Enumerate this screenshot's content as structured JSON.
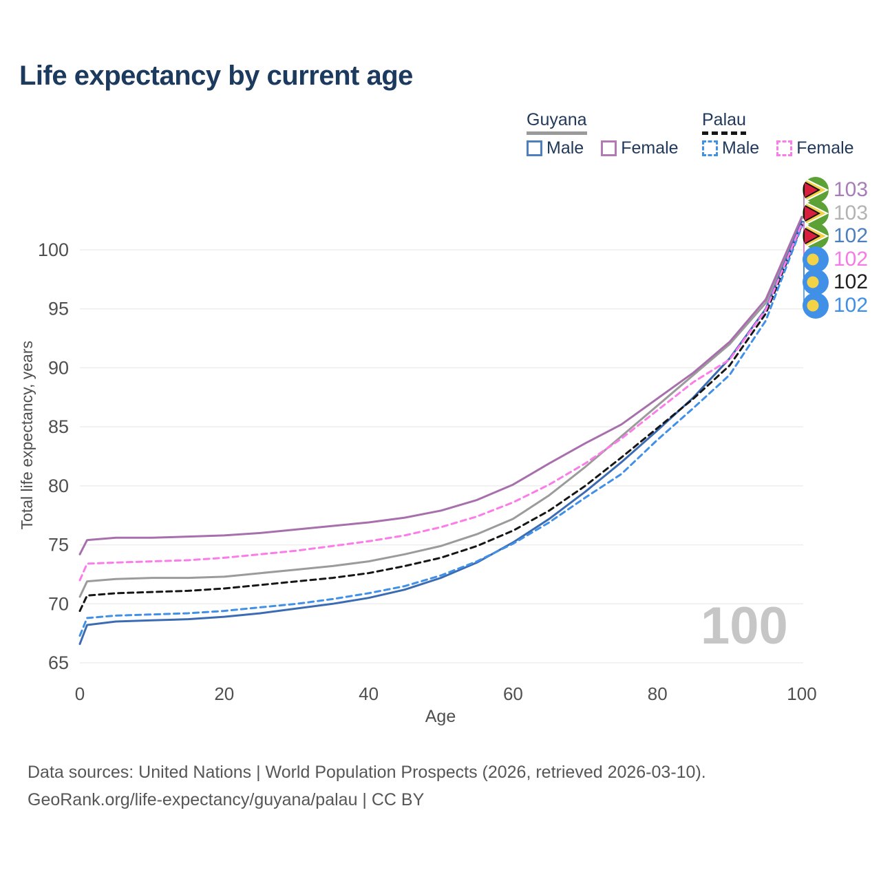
{
  "title": "Life expectancy by current age",
  "legend": {
    "groups": [
      {
        "name": "Guyana",
        "line_style": "solid",
        "underline_color": "#9a9a9a",
        "items": [
          {
            "label": "Male",
            "color": "#4d7fbe"
          },
          {
            "label": "Female",
            "color": "#b279b2"
          }
        ]
      },
      {
        "name": "Palau",
        "line_style": "dashed",
        "underline_color": "#161616",
        "items": [
          {
            "label": "Male",
            "color": "#4190e8"
          },
          {
            "label": "Female",
            "color": "#fb7ce8"
          }
        ]
      }
    ]
  },
  "watermark": "100",
  "footer": {
    "line1": "Data sources: United Nations | World Population Prospects (2026, retrieved 2026-03-10).",
    "line2": "GeoRank.org/life-expectancy/guyana/palau | CC BY"
  },
  "chart_data": {
    "type": "line",
    "title": "Life expectancy by current age",
    "xlabel": "Age",
    "ylabel": "Total life expectancy, years",
    "xlim": [
      0,
      100
    ],
    "ylim": [
      65,
      103.5
    ],
    "xticks": [
      0,
      20,
      40,
      60,
      80,
      100
    ],
    "yticks": [
      65,
      70,
      75,
      80,
      85,
      90,
      95,
      100
    ],
    "grid": "horizontal",
    "legend_position": "top-right",
    "ages": [
      0,
      1,
      5,
      10,
      15,
      20,
      25,
      30,
      35,
      40,
      45,
      50,
      55,
      60,
      65,
      70,
      75,
      80,
      85,
      90,
      95,
      100
    ],
    "series": [
      {
        "name": "Guyana Total",
        "country": "Guyana",
        "sex": "both",
        "style": "solid",
        "color": "#9b9b9b",
        "flag": "guyana",
        "label_slot": 1,
        "end_label": "103",
        "end_label_color": "#b3b3b3",
        "values": [
          70.6,
          71.9,
          72.1,
          72.2,
          72.2,
          72.3,
          72.6,
          72.9,
          73.2,
          73.6,
          74.2,
          74.9,
          75.9,
          77.2,
          79.2,
          81.6,
          84.2,
          86.8,
          89.4,
          92.0,
          95.5,
          102.7
        ]
      },
      {
        "name": "Guyana Male",
        "country": "Guyana",
        "sex": "male",
        "style": "solid",
        "color": "#3b6cb3",
        "flag": "guyana",
        "label_slot": 2,
        "end_label": "102",
        "end_label_color": "#4d7fbe",
        "values": [
          66.6,
          68.2,
          68.5,
          68.6,
          68.7,
          68.9,
          69.2,
          69.6,
          70.0,
          70.5,
          71.2,
          72.2,
          73.5,
          75.2,
          77.2,
          79.5,
          82.0,
          84.7,
          87.5,
          90.8,
          95.0,
          102.4
        ]
      },
      {
        "name": "Guyana Female",
        "country": "Guyana",
        "sex": "female",
        "style": "solid",
        "color": "#a86fad",
        "flag": "guyana",
        "label_slot": 0,
        "end_label": "103",
        "end_label_color": "#a87cb8",
        "values": [
          74.2,
          75.4,
          75.6,
          75.6,
          75.7,
          75.8,
          76.0,
          76.3,
          76.6,
          76.9,
          77.3,
          77.9,
          78.8,
          80.1,
          81.9,
          83.6,
          85.2,
          87.4,
          89.6,
          92.2,
          95.8,
          102.8
        ]
      },
      {
        "name": "Palau Total",
        "country": "Palau",
        "sex": "both",
        "style": "dashed",
        "color": "#161616",
        "flag": "palau",
        "label_slot": 4,
        "end_label": "102",
        "end_label_color": "#1f1f1f",
        "values": [
          69.4,
          70.7,
          70.9,
          71.0,
          71.1,
          71.3,
          71.6,
          71.9,
          72.2,
          72.6,
          73.2,
          73.9,
          74.9,
          76.2,
          77.9,
          80.0,
          82.4,
          84.9,
          87.4,
          90.2,
          94.6,
          102.1
        ]
      },
      {
        "name": "Palau Male",
        "country": "Palau",
        "sex": "male",
        "style": "dashed",
        "color": "#4190e8",
        "flag": "palau",
        "label_slot": 5,
        "end_label": "102",
        "end_label_color": "#3f8ee8",
        "values": [
          67.3,
          68.8,
          69.0,
          69.1,
          69.2,
          69.4,
          69.7,
          70.0,
          70.4,
          70.9,
          71.5,
          72.4,
          73.6,
          75.1,
          76.9,
          79.0,
          81.0,
          83.9,
          86.6,
          89.4,
          94.0,
          102.0
        ]
      },
      {
        "name": "Palau Female",
        "country": "Palau",
        "sex": "female",
        "style": "dashed",
        "color": "#fb7ce8",
        "flag": "palau",
        "label_slot": 3,
        "end_label": "102",
        "end_label_color": "#f57ae8",
        "values": [
          72.0,
          73.4,
          73.5,
          73.6,
          73.7,
          73.9,
          74.2,
          74.5,
          74.9,
          75.3,
          75.8,
          76.5,
          77.4,
          78.6,
          80.1,
          81.9,
          84.0,
          86.4,
          88.8,
          90.7,
          94.9,
          102.2
        ]
      }
    ]
  }
}
